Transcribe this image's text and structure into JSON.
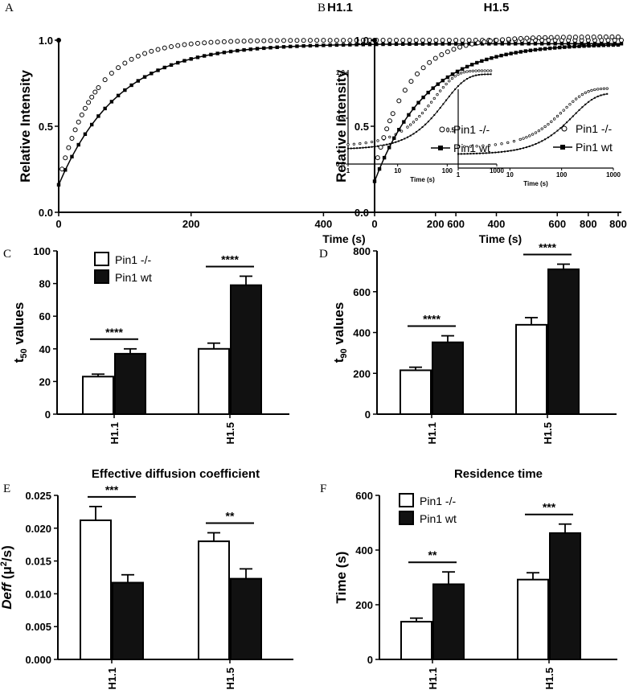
{
  "panel_labels": [
    "A",
    "B",
    "C",
    "D",
    "E",
    "F"
  ],
  "legend": {
    "ko": "Pin1 -/-",
    "wt": "Pin1 wt"
  },
  "chart_data": [
    {
      "panel": "A",
      "type": "scatter",
      "title": "H1.1",
      "xlabel": "Time (s)",
      "ylabel": "Relative Intensity",
      "xlim": [
        0,
        850
      ],
      "ylim": [
        0,
        1.0
      ],
      "xticks": [
        "0",
        "200",
        "400",
        "600",
        "800"
      ],
      "yticks": [
        "0.0",
        "0.5",
        "1.0"
      ],
      "series": [
        {
          "name": "Pin1 -/-",
          "marker": "open-circle",
          "tau": 55,
          "plateau": 1.0,
          "start": 0.18
        },
        {
          "name": "Pin1 wt",
          "marker": "filled-square",
          "tau": 90,
          "plateau": 0.98,
          "start": 0.16
        }
      ],
      "inset": {
        "xlabel": "Time (s)",
        "xscale": "log",
        "xticks": [
          "1",
          "10",
          "100",
          "1000"
        ],
        "yticks": [
          "0.0",
          "0.5",
          "1.0"
        ],
        "ylim": [
          0,
          1.0
        ]
      }
    },
    {
      "panel": "B",
      "type": "scatter",
      "title": "H1.5",
      "xlabel": "Time  (s)",
      "ylabel": "Relative Intensity",
      "xlim": [
        0,
        800
      ],
      "ylim": [
        0,
        1.0
      ],
      "xticks": [
        "0",
        "200",
        "400",
        "600",
        "800"
      ],
      "yticks": [
        "0.0",
        "0.5",
        "1.0"
      ],
      "series": [
        {
          "name": "Pin1 -/-",
          "marker": "open-circle",
          "tau": 110,
          "plateau": 1.02,
          "start": 0.25
        },
        {
          "name": "Pin1 wt",
          "marker": "filled-square",
          "tau": 170,
          "plateau": 0.98,
          "start": 0.18
        }
      ],
      "inset": {
        "xlabel": "Time (s)",
        "xscale": "log",
        "xticks": [
          "1",
          "10",
          "100",
          "1000"
        ],
        "yticks": [
          "0.5"
        ],
        "ylim": [
          0,
          1.0
        ]
      }
    },
    {
      "panel": "C",
      "type": "bar",
      "ylabel": "t50 values",
      "ylabel_main": "t",
      "ylabel_sub": "50",
      "ylabel_rest": " values",
      "categories": [
        "H1.1",
        "H1.5"
      ],
      "ylim": [
        0,
        100
      ],
      "yticks": [
        "0",
        "20",
        "40",
        "60",
        "80",
        "100"
      ],
      "series": [
        {
          "name": "Pin1 -/-",
          "values": [
            23,
            40
          ],
          "errors": [
            1.5,
            3.5
          ]
        },
        {
          "name": "Pin1 wt",
          "values": [
            37,
            79
          ],
          "errors": [
            3,
            5.5
          ]
        }
      ],
      "significance": [
        "****",
        "****"
      ]
    },
    {
      "panel": "D",
      "type": "bar",
      "ylabel": "t90 values",
      "ylabel_main": "t",
      "ylabel_sub": "90",
      "ylabel_rest": " values",
      "categories": [
        "H1.1",
        "H1.5"
      ],
      "ylim": [
        0,
        800
      ],
      "yticks": [
        "0",
        "200",
        "400",
        "600",
        "800"
      ],
      "series": [
        {
          "name": "Pin1 -/-",
          "values": [
            215,
            438
          ],
          "errors": [
            15,
            35
          ]
        },
        {
          "name": "Pin1 wt",
          "values": [
            352,
            710
          ],
          "errors": [
            32,
            25
          ]
        }
      ],
      "significance": [
        "****",
        "****"
      ]
    },
    {
      "panel": "E",
      "type": "bar",
      "title": "Effective diffusion coefficient",
      "ylabel": "Deff (μ2/s)",
      "ylabel_main": "Deff",
      "ylabel_rest": " (μ",
      "ylabel_sup": "2",
      "ylabel_end": "/s)",
      "categories": [
        "H1.1",
        "H1.5"
      ],
      "ylim": [
        0,
        0.025
      ],
      "yticks": [
        "0.000",
        "0.005",
        "0.010",
        "0.015",
        "0.020",
        "0.025"
      ],
      "series": [
        {
          "name": "Pin1 -/-",
          "values": [
            0.0212,
            0.018
          ],
          "errors": [
            0.0021,
            0.0013
          ]
        },
        {
          "name": "Pin1 wt",
          "values": [
            0.0117,
            0.0123
          ],
          "errors": [
            0.0012,
            0.0015
          ]
        }
      ],
      "significance": [
        "***",
        "**"
      ]
    },
    {
      "panel": "F",
      "type": "bar",
      "title": "Residence time",
      "ylabel": "Time (s)",
      "categories": [
        "H1.1",
        "H1.5"
      ],
      "ylim": [
        0,
        600
      ],
      "yticks": [
        "0",
        "200",
        "400",
        "600"
      ],
      "series": [
        {
          "name": "Pin1 -/-",
          "values": [
            138,
            292
          ],
          "errors": [
            13,
            25
          ]
        },
        {
          "name": "Pin1 wt",
          "values": [
            275,
            462
          ],
          "errors": [
            45,
            33
          ]
        }
      ],
      "significance": [
        "**",
        "***"
      ]
    }
  ]
}
